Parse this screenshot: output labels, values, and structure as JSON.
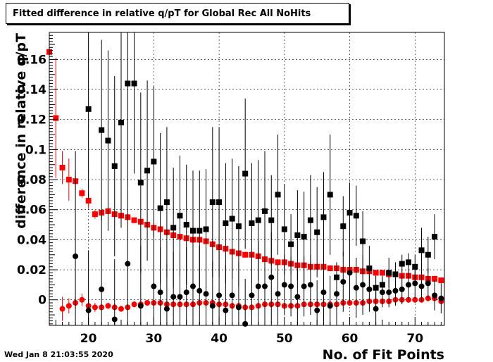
{
  "chart_data": {
    "type": "scatter",
    "title": "Fitted difference in relative q/pT for Global Rec All NoHits",
    "xlabel": "No. of Fit Points",
    "ylabel": "difference in relative q/pT",
    "xlim": [
      14,
      74.5
    ],
    "ylim": [
      -0.017,
      0.178
    ],
    "xticks": [
      20,
      30,
      40,
      50,
      60,
      70
    ],
    "yticks": [
      0,
      0.02,
      0.04,
      0.06,
      0.08,
      0.1,
      0.12,
      0.14,
      0.16
    ],
    "grid": true,
    "series": [
      {
        "marker": "square",
        "color": "#ff0000",
        "x": [
          14,
          15,
          16,
          17,
          18,
          19,
          20,
          21,
          22,
          23,
          24,
          25,
          26,
          27,
          28,
          29,
          30,
          31,
          32,
          33,
          34,
          35,
          36,
          37,
          38,
          39,
          40,
          41,
          42,
          43,
          44,
          45,
          46,
          47,
          48,
          49,
          50,
          51,
          52,
          53,
          54,
          55,
          56,
          57,
          58,
          59,
          60,
          61,
          62,
          63,
          64,
          65,
          66,
          67,
          68,
          69,
          70,
          71,
          72,
          73,
          74
        ],
        "y": [
          0.165,
          0.121,
          0.088,
          0.08,
          0.079,
          0.071,
          0.066,
          0.057,
          0.058,
          0.059,
          0.057,
          0.056,
          0.055,
          0.053,
          0.052,
          0.05,
          0.048,
          0.047,
          0.045,
          0.043,
          0.042,
          0.041,
          0.04,
          0.04,
          0.039,
          0.037,
          0.035,
          0.034,
          0.032,
          0.031,
          0.03,
          0.03,
          0.029,
          0.027,
          0.026,
          0.025,
          0.025,
          0.024,
          0.023,
          0.023,
          0.022,
          0.022,
          0.022,
          0.021,
          0.021,
          0.02,
          0.02,
          0.02,
          0.019,
          0.019,
          0.018,
          0.018,
          0.017,
          0.017,
          0.016,
          0.016,
          0.015,
          0.015,
          0.014,
          0.014,
          0.013
        ],
        "err": [
          0.008,
          0.04,
          0.011,
          0.014,
          0.006,
          0.003,
          0.005,
          0.003,
          0.002,
          0.002,
          0.002,
          0.002,
          0.002,
          0.002,
          0.002,
          0.002,
          0.002,
          0.002,
          0.002,
          0.002,
          0.002,
          0.002,
          0.002,
          0.002,
          0.002,
          0.002,
          0.002,
          0.002,
          0.002,
          0.002,
          0.002,
          0.002,
          0.002,
          0.002,
          0.002,
          0.002,
          0.002,
          0.002,
          0.002,
          0.002,
          0.002,
          0.002,
          0.002,
          0.002,
          0.002,
          0.002,
          0.002,
          0.002,
          0.002,
          0.002,
          0.002,
          0.002,
          0.002,
          0.002,
          0.002,
          0.002,
          0.002,
          0.002,
          0.002,
          0.002,
          0.002
        ]
      },
      {
        "marker": "circle",
        "color": "#ff0000",
        "x": [
          16,
          17,
          18,
          19,
          20,
          21,
          22,
          23,
          24,
          25,
          26,
          27,
          28,
          29,
          30,
          31,
          32,
          33,
          34,
          35,
          36,
          37,
          38,
          39,
          40,
          41,
          42,
          43,
          44,
          45,
          46,
          47,
          48,
          49,
          50,
          51,
          52,
          53,
          54,
          55,
          56,
          57,
          58,
          59,
          60,
          61,
          62,
          63,
          64,
          65,
          66,
          67,
          68,
          69,
          70,
          71,
          72,
          73,
          74
        ],
        "y": [
          -0.006,
          -0.004,
          -0.002,
          0.0,
          -0.004,
          -0.005,
          -0.005,
          -0.004,
          -0.005,
          -0.006,
          -0.005,
          -0.003,
          -0.003,
          -0.002,
          -0.002,
          -0.002,
          -0.003,
          -0.003,
          -0.003,
          -0.003,
          -0.003,
          -0.002,
          -0.002,
          -0.002,
          -0.003,
          -0.003,
          -0.004,
          -0.004,
          -0.005,
          -0.005,
          -0.004,
          -0.003,
          -0.003,
          -0.003,
          -0.004,
          -0.004,
          -0.004,
          -0.003,
          -0.003,
          -0.003,
          -0.003,
          -0.003,
          -0.003,
          -0.002,
          -0.002,
          -0.002,
          -0.002,
          -0.001,
          -0.001,
          -0.001,
          -0.001,
          0.0,
          0.0,
          0.0,
          0.0,
          0.0,
          0.001,
          0.001,
          -0.001
        ],
        "err": [
          0.008,
          0.005,
          0.004,
          0.004,
          0.004,
          0.003,
          0.002,
          0.002,
          0.002,
          0.002,
          0.002,
          0.002,
          0.002,
          0.002,
          0.002,
          0.002,
          0.002,
          0.002,
          0.002,
          0.002,
          0.002,
          0.002,
          0.002,
          0.002,
          0.002,
          0.002,
          0.002,
          0.002,
          0.002,
          0.002,
          0.002,
          0.002,
          0.002,
          0.002,
          0.002,
          0.002,
          0.002,
          0.002,
          0.002,
          0.002,
          0.002,
          0.002,
          0.002,
          0.002,
          0.002,
          0.002,
          0.002,
          0.002,
          0.002,
          0.002,
          0.002,
          0.002,
          0.002,
          0.002,
          0.002,
          0.002,
          0.002,
          0.002,
          0.002
        ]
      },
      {
        "marker": "square",
        "color": "#000000",
        "x": [
          20,
          22,
          23,
          24,
          25,
          26,
          27,
          28,
          29,
          30,
          31,
          32,
          33,
          34,
          35,
          36,
          37,
          38,
          39,
          40,
          41,
          42,
          43,
          44,
          45,
          46,
          47,
          48,
          49,
          50,
          51,
          52,
          53,
          54,
          55,
          56,
          57,
          58,
          59,
          60,
          61,
          62,
          63,
          64,
          65,
          66,
          67,
          68,
          69,
          70,
          71,
          72,
          73
        ],
        "y": [
          0.127,
          0.113,
          0.106,
          0.089,
          0.118,
          0.144,
          0.144,
          0.078,
          0.086,
          0.092,
          0.061,
          0.065,
          0.048,
          0.056,
          0.05,
          0.046,
          0.046,
          0.047,
          0.065,
          0.065,
          0.051,
          0.054,
          0.049,
          0.084,
          0.051,
          0.053,
          0.059,
          0.053,
          0.07,
          0.047,
          0.037,
          0.043,
          0.042,
          0.053,
          0.045,
          0.055,
          0.07,
          0.015,
          0.049,
          0.058,
          0.056,
          0.039,
          0.021,
          0.008,
          0.01,
          0.018,
          0.017,
          0.024,
          0.025,
          0.022,
          0.033,
          0.03,
          0.042
        ],
        "err": [
          0.06,
          0.06,
          0.06,
          0.06,
          0.07,
          0.07,
          0.06,
          0.06,
          0.06,
          0.05,
          0.05,
          0.05,
          0.04,
          0.04,
          0.04,
          0.04,
          0.04,
          0.04,
          0.05,
          0.05,
          0.04,
          0.04,
          0.04,
          0.05,
          0.04,
          0.04,
          0.04,
          0.03,
          0.04,
          0.03,
          0.02,
          0.03,
          0.03,
          0.03,
          0.03,
          0.03,
          0.04,
          0.01,
          0.02,
          0.02,
          0.02,
          0.02,
          0.015,
          0.008,
          0.006,
          0.01,
          0.008,
          0.006,
          0.006,
          0.008,
          0.015,
          0.012,
          0.015
        ]
      },
      {
        "marker": "circle",
        "color": "#000000",
        "x": [
          18,
          20,
          22,
          24,
          26,
          28,
          30,
          31,
          32,
          33,
          34,
          35,
          36,
          37,
          38,
          39,
          40,
          41,
          42,
          43,
          44,
          45,
          46,
          47,
          48,
          49,
          50,
          51,
          52,
          53,
          54,
          55,
          56,
          57,
          58,
          59,
          60,
          61,
          62,
          63,
          64,
          65,
          66,
          67,
          68,
          69,
          70,
          71,
          72,
          73,
          74
        ],
        "y": [
          0.029,
          -0.007,
          0.007,
          -0.013,
          0.024,
          -0.004,
          0.009,
          0.005,
          -0.006,
          0.002,
          0.002,
          0.005,
          0.009,
          0.006,
          0.004,
          -0.004,
          0.003,
          -0.007,
          0.003,
          -0.005,
          -0.016,
          0.003,
          0.009,
          0.009,
          0.015,
          0.004,
          0.01,
          0.009,
          0.002,
          0.009,
          0.01,
          -0.007,
          0.005,
          -0.004,
          0.004,
          0.012,
          0.018,
          0.008,
          0.01,
          0.007,
          -0.006,
          0.005,
          0.005,
          0.006,
          0.007,
          0.01,
          0.011,
          0.009,
          0.011,
          0.003,
          0.001
        ],
        "err": [
          0.07,
          0.04,
          0.05,
          0.04,
          0.05,
          0.04,
          0.04,
          0.03,
          0.03,
          0.03,
          0.03,
          0.03,
          0.03,
          0.03,
          0.03,
          0.03,
          0.03,
          0.03,
          0.03,
          0.03,
          0.03,
          0.03,
          0.03,
          0.03,
          0.03,
          0.02,
          0.02,
          0.02,
          0.02,
          0.02,
          0.02,
          0.02,
          0.02,
          0.02,
          0.02,
          0.02,
          0.02,
          0.02,
          0.02,
          0.015,
          0.015,
          0.01,
          0.01,
          0.01,
          0.01,
          0.01,
          0.01,
          0.01,
          0.01,
          0.01,
          0.01
        ]
      }
    ]
  },
  "footer": {
    "timestamp": "Wed Jan  8 21:03:55 2020"
  }
}
